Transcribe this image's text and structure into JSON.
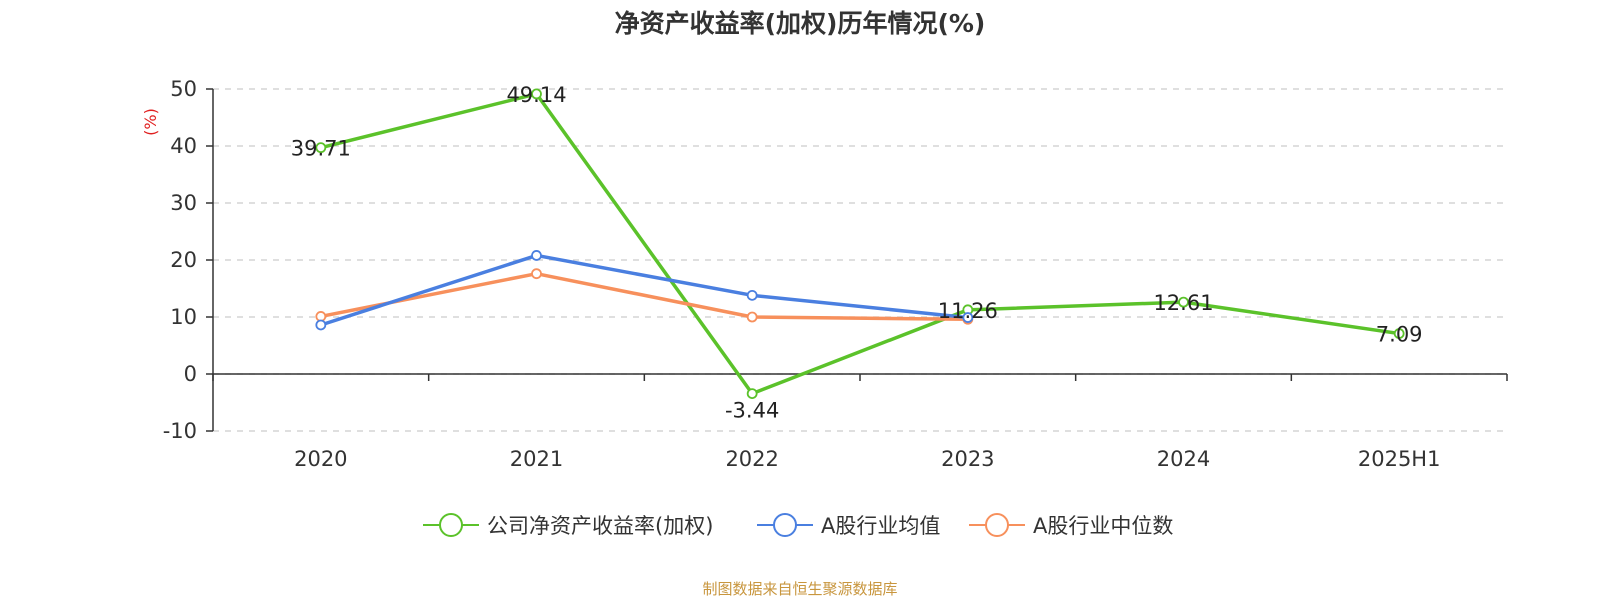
{
  "title": "净资产收益率(加权)历年情况(%)",
  "source": "制图数据来自恒生聚源数据库",
  "chart_data": {
    "type": "line",
    "title": "净资产收益率(加权)历年情况(%)",
    "ylabel": "(%)",
    "xlabel": "",
    "categories": [
      "2020",
      "2021",
      "2022",
      "2023",
      "2024",
      "2025H1"
    ],
    "ylim": [
      -10,
      50
    ],
    "yticks": [
      -10,
      0,
      10,
      20,
      30,
      40,
      50
    ],
    "grid": "horizontal dashed",
    "legend_position": "bottom",
    "series": [
      {
        "name": "公司净资产收益率(加权)",
        "color": "#5bc22a",
        "values": [
          39.71,
          49.14,
          -3.44,
          11.26,
          12.61,
          7.09
        ],
        "labels": [
          "39.71",
          "49.14",
          "-3.44",
          "11.26",
          "12.61",
          "7.09"
        ]
      },
      {
        "name": "A股行业均值",
        "color": "#4a7fe0",
        "values": [
          8.6,
          20.8,
          13.8,
          9.9,
          null,
          null
        ]
      },
      {
        "name": "A股行业中位数",
        "color": "#f7905c",
        "values": [
          10.1,
          17.6,
          10.0,
          9.6,
          null,
          null
        ]
      }
    ]
  }
}
